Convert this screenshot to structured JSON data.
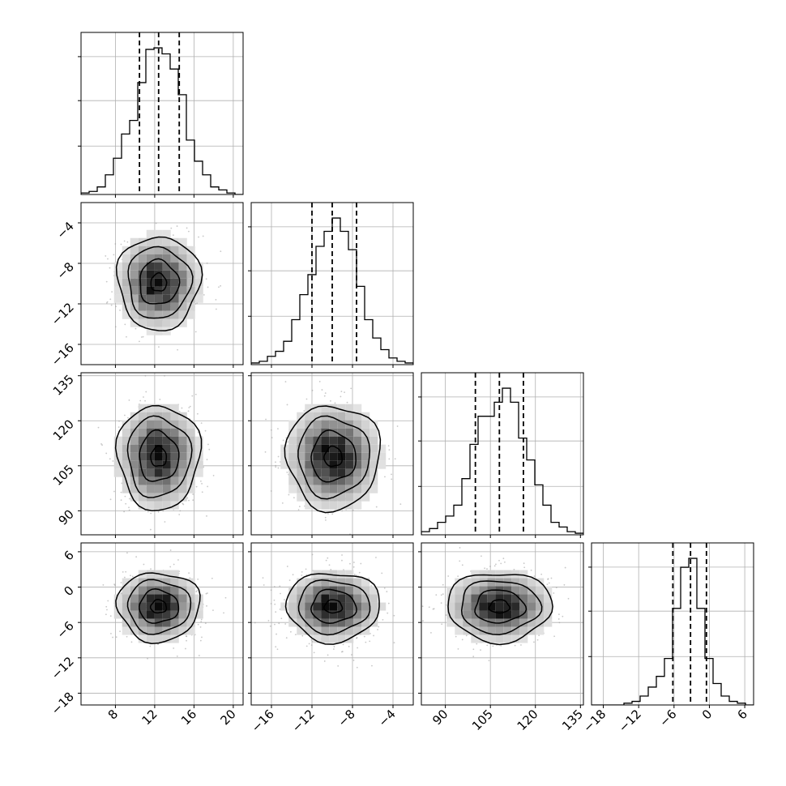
{
  "chart_data": {
    "type": "corner",
    "description": "Corner plot of 4 parameters: 1D marginal histograms on the diagonal with 16/50/84 percentile dashed lines; 2D density scatter with contours below the diagonal.",
    "grid": true,
    "parameters": [
      {
        "range": [
          4.5,
          21
        ],
        "ticks": [
          8,
          12,
          16,
          20
        ],
        "tick_labels": [
          "8",
          "12",
          "16",
          "20"
        ],
        "quantiles": [
          10.45,
          12.4,
          14.5
        ],
        "mean": 12.4,
        "sd": 2.0,
        "hist_counts": [
          1,
          2,
          5,
          13,
          24,
          40,
          49,
          74,
          96,
          97,
          93,
          83,
          66,
          36,
          22,
          13,
          5,
          3,
          1,
          0
        ]
      },
      {
        "range": [
          -18,
          -2
        ],
        "ticks": [
          -16,
          -12,
          -8,
          -4
        ],
        "tick_labels": [
          "−16",
          "−12",
          "−8",
          "−4"
        ],
        "quantiles": [
          -12,
          -10,
          -7.6
        ],
        "mean": -9.9,
        "sd": 2.2,
        "hist_counts": [
          1,
          2,
          5,
          8,
          14,
          27,
          42,
          54,
          71,
          80,
          88,
          80,
          69,
          47,
          27,
          16,
          9,
          4,
          2,
          1
        ]
      },
      {
        "range": [
          82,
          136
        ],
        "ticks": [
          90,
          105,
          120,
          135
        ],
        "tick_labels": [
          "90",
          "105",
          "120",
          "135"
        ],
        "quantiles": [
          100,
          108,
          116
        ],
        "mean": 108,
        "sd": 8.3,
        "hist_counts": [
          2,
          4,
          8,
          12,
          19,
          36,
          58,
          76,
          76,
          85,
          94,
          85,
          62,
          48,
          32,
          19,
          8,
          5,
          2,
          1
        ]
      },
      {
        "range": [
          -20,
          7.5
        ],
        "ticks": [
          -18,
          -12,
          -6,
          0,
          6
        ],
        "tick_labels": [
          "−18",
          "−12",
          "−6",
          "0",
          "6"
        ],
        "quantiles": [
          -6.2,
          -3.2,
          -0.5
        ],
        "mean": -3.3,
        "sd": 2.8,
        "hist_counts": [
          0,
          0,
          0,
          0,
          1,
          2,
          5,
          10,
          16,
          26,
          54,
          77,
          82,
          54,
          26,
          12,
          5,
          2,
          1,
          0
        ]
      }
    ]
  }
}
